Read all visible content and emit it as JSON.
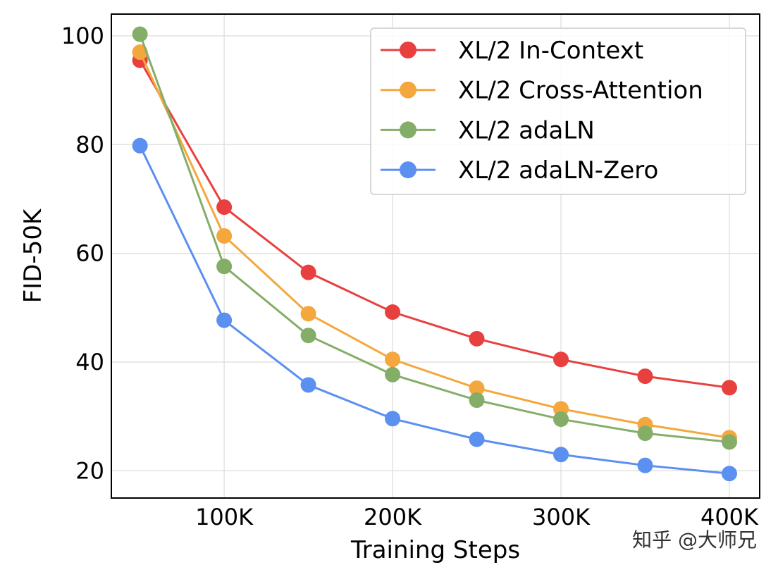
{
  "chart_data": {
    "type": "line",
    "title": "",
    "xlabel": "Training Steps",
    "ylabel": "FID-50K",
    "x": [
      50000,
      100000,
      150000,
      200000,
      250000,
      300000,
      350000,
      400000
    ],
    "xlim": [
      33000,
      418000
    ],
    "ylim": [
      15,
      104
    ],
    "x_ticks": [
      {
        "value": 100000,
        "label": "100K"
      },
      {
        "value": 200000,
        "label": "200K"
      },
      {
        "value": 300000,
        "label": "300K"
      },
      {
        "value": 400000,
        "label": "400K"
      }
    ],
    "y_ticks": [
      {
        "value": 20,
        "label": "20"
      },
      {
        "value": 40,
        "label": "40"
      },
      {
        "value": 60,
        "label": "60"
      },
      {
        "value": 80,
        "label": "80"
      },
      {
        "value": 100,
        "label": "100"
      }
    ],
    "grid": true,
    "legend_position": "top-right",
    "series": [
      {
        "name": "XL/2 In-Context",
        "color": "#E8403F",
        "values": [
          95.5,
          68.5,
          56.5,
          49.2,
          44.3,
          40.5,
          37.4,
          35.3
        ]
      },
      {
        "name": "XL/2 Cross-Attention",
        "color": "#F4A73D",
        "values": [
          97.0,
          63.2,
          48.9,
          40.5,
          35.2,
          31.4,
          28.5,
          26.1
        ]
      },
      {
        "name": "XL/2 adaLN",
        "color": "#84AE68",
        "values": [
          100.3,
          57.6,
          44.9,
          37.7,
          33.0,
          29.5,
          26.9,
          25.3
        ]
      },
      {
        "name": "XL/2 adaLN-Zero",
        "color": "#5B8FF0",
        "values": [
          79.8,
          47.7,
          35.8,
          29.6,
          25.8,
          23.0,
          21.0,
          19.5
        ]
      }
    ]
  },
  "watermark": "知乎 @大师兄"
}
